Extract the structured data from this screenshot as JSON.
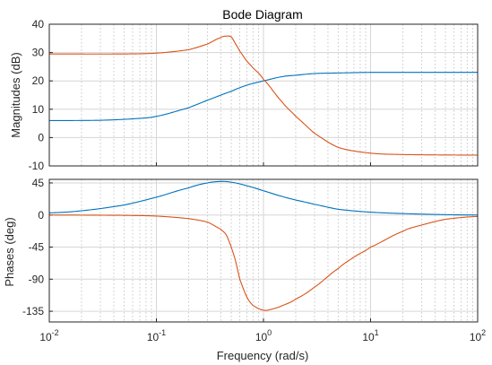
{
  "chart_data": {
    "type": "line",
    "title": "Bode Diagram",
    "xlabel": "Frequency (rad/s)",
    "xscale": "log",
    "xlim": [
      0.01,
      100
    ],
    "x_ticks": [
      {
        "value": 0.01,
        "base": "10",
        "exp": "-2"
      },
      {
        "value": 0.1,
        "base": "10",
        "exp": "-1"
      },
      {
        "value": 1,
        "base": "10",
        "exp": "0"
      },
      {
        "value": 10,
        "base": "10",
        "exp": "1"
      },
      {
        "value": 100,
        "base": "10",
        "exp": "2"
      }
    ],
    "grid": true,
    "colors": {
      "series1": "#0072BD",
      "series2": "#D95319"
    },
    "subplots": [
      {
        "ylabel": "Magnitudes (dB)",
        "ylim": [
          -10,
          40
        ],
        "yticks": [
          -10,
          0,
          10,
          20,
          30,
          40
        ],
        "series": [
          {
            "color": "#0072BD",
            "x": [
              0.01,
              0.03,
              0.06,
              0.1,
              0.2,
              0.3,
              0.5,
              0.7,
              1,
              1.5,
              2,
              3,
              5,
              10,
              100
            ],
            "y": [
              6,
              6.1,
              6.6,
              7.5,
              10.5,
              13.2,
              16.3,
              18.5,
              20,
              21.5,
              22,
              22.6,
              22.8,
              23,
              23
            ]
          },
          {
            "color": "#D95319",
            "x": [
              0.01,
              0.05,
              0.1,
              0.2,
              0.3,
              0.4,
              0.45,
              0.5,
              0.55,
              0.6,
              0.7,
              0.8,
              1,
              1.5,
              2,
              3,
              5,
              10,
              20,
              100
            ],
            "y": [
              29.5,
              29.5,
              29.8,
              31,
              33,
              35.3,
              35.8,
              35.5,
              33,
              30.5,
              27,
              24.5,
              20.5,
              12.5,
              7.5,
              1.5,
              -3.5,
              -5.5,
              -6,
              -6.2
            ]
          }
        ]
      },
      {
        "ylabel": "Phases (deg)",
        "ylim": [
          -150,
          50
        ],
        "yticks": [
          -135,
          -90,
          -45,
          0,
          45
        ],
        "series": [
          {
            "color": "#0072BD",
            "x": [
              0.01,
              0.02,
              0.05,
              0.1,
              0.2,
              0.3,
              0.4,
              0.5,
              0.7,
              1,
              1.5,
              2,
              3,
              5,
              10,
              20,
              50,
              100
            ],
            "y": [
              3,
              6,
              14,
              25,
              38,
              45,
              47,
              46,
              41,
              34,
              26,
              21,
              15,
              8,
              4,
              2,
              0.5,
              0
            ]
          },
          {
            "color": "#D95319",
            "x": [
              0.01,
              0.05,
              0.1,
              0.2,
              0.3,
              0.4,
              0.45,
              0.5,
              0.55,
              0.6,
              0.7,
              0.8,
              1,
              1.2,
              1.5,
              2,
              3,
              5,
              7,
              10,
              20,
              30,
              50,
              100
            ],
            "y": [
              0,
              -0.5,
              -1.5,
              -5,
              -10,
              -20,
              -28,
              -45,
              -65,
              -90,
              -115,
              -127,
              -133.5,
              -132,
              -127,
              -118,
              -101,
              -75,
              -59,
              -45,
              -23,
              -14,
              -6,
              -2
            ]
          }
        ]
      }
    ]
  }
}
